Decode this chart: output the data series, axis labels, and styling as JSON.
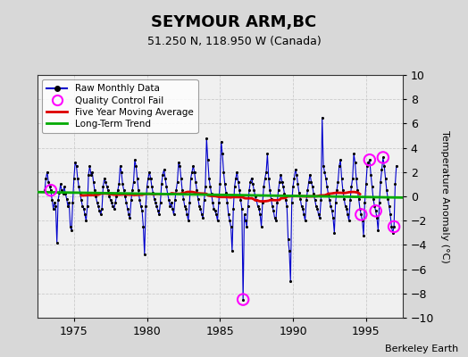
{
  "title": "SEYMOUR ARM,BC",
  "subtitle": "51.250 N, 118.950 W (Canada)",
  "ylabel": "Temperature Anomaly (°C)",
  "attribution": "Berkeley Earth",
  "ylim": [
    -10,
    10
  ],
  "xlim": [
    1972.5,
    1997.5
  ],
  "yticks": [
    -10,
    -8,
    -6,
    -4,
    -2,
    0,
    2,
    4,
    6,
    8,
    10
  ],
  "xticks": [
    1975,
    1980,
    1985,
    1990,
    1995
  ],
  "fig_bg_color": "#d8d8d8",
  "plot_bg_color": "#f0f0f0",
  "legend_bg": "#ffffff",
  "raw_color": "#0000cc",
  "ma_color": "#dd0000",
  "trend_color": "#00aa00",
  "qc_color": "#ff00ff",
  "raw_data": [
    [
      1973.0,
      0.5
    ],
    [
      1973.083,
      1.5
    ],
    [
      1973.167,
      2.0
    ],
    [
      1973.25,
      1.2
    ],
    [
      1973.333,
      0.8
    ],
    [
      1973.417,
      0.5
    ],
    [
      1973.5,
      -0.3
    ],
    [
      1973.583,
      -1.0
    ],
    [
      1973.667,
      -0.5
    ],
    [
      1973.75,
      -0.8
    ],
    [
      1973.833,
      -3.8
    ],
    [
      1973.917,
      -0.3
    ],
    [
      1974.0,
      0.3
    ],
    [
      1974.083,
      1.0
    ],
    [
      1974.167,
      0.5
    ],
    [
      1974.25,
      0.2
    ],
    [
      1974.333,
      0.8
    ],
    [
      1974.417,
      0.2
    ],
    [
      1974.5,
      -0.2
    ],
    [
      1974.583,
      -0.8
    ],
    [
      1974.667,
      -0.5
    ],
    [
      1974.75,
      -2.5
    ],
    [
      1974.833,
      -2.8
    ],
    [
      1974.917,
      -0.5
    ],
    [
      1975.0,
      1.5
    ],
    [
      1975.083,
      2.8
    ],
    [
      1975.167,
      2.5
    ],
    [
      1975.25,
      1.5
    ],
    [
      1975.333,
      0.8
    ],
    [
      1975.417,
      0.3
    ],
    [
      1975.5,
      -0.3
    ],
    [
      1975.583,
      -0.8
    ],
    [
      1975.667,
      -1.0
    ],
    [
      1975.75,
      -1.5
    ],
    [
      1975.833,
      -2.0
    ],
    [
      1975.917,
      -0.8
    ],
    [
      1976.0,
      1.8
    ],
    [
      1976.083,
      2.5
    ],
    [
      1976.167,
      1.8
    ],
    [
      1976.25,
      2.0
    ],
    [
      1976.333,
      1.2
    ],
    [
      1976.417,
      0.5
    ],
    [
      1976.5,
      0.0
    ],
    [
      1976.583,
      -0.5
    ],
    [
      1976.667,
      -0.8
    ],
    [
      1976.75,
      -1.2
    ],
    [
      1976.833,
      -1.5
    ],
    [
      1976.917,
      -1.0
    ],
    [
      1977.0,
      0.8
    ],
    [
      1977.083,
      1.5
    ],
    [
      1977.167,
      1.2
    ],
    [
      1977.25,
      0.8
    ],
    [
      1977.333,
      0.5
    ],
    [
      1977.417,
      0.0
    ],
    [
      1977.5,
      -0.3
    ],
    [
      1977.583,
      -0.5
    ],
    [
      1977.667,
      -0.8
    ],
    [
      1977.75,
      -1.0
    ],
    [
      1977.833,
      -0.5
    ],
    [
      1977.917,
      0.0
    ],
    [
      1978.0,
      0.5
    ],
    [
      1978.083,
      1.0
    ],
    [
      1978.167,
      2.5
    ],
    [
      1978.25,
      2.0
    ],
    [
      1978.333,
      1.0
    ],
    [
      1978.417,
      0.5
    ],
    [
      1978.5,
      0.0
    ],
    [
      1978.583,
      -0.5
    ],
    [
      1978.667,
      -1.0
    ],
    [
      1978.75,
      -1.5
    ],
    [
      1978.833,
      -1.8
    ],
    [
      1978.917,
      -0.3
    ],
    [
      1979.0,
      0.5
    ],
    [
      1979.083,
      1.2
    ],
    [
      1979.167,
      3.0
    ],
    [
      1979.25,
      2.5
    ],
    [
      1979.333,
      1.5
    ],
    [
      1979.417,
      0.5
    ],
    [
      1979.5,
      -0.3
    ],
    [
      1979.583,
      -0.8
    ],
    [
      1979.667,
      -1.2
    ],
    [
      1979.75,
      -2.5
    ],
    [
      1979.833,
      -4.8
    ],
    [
      1979.917,
      -0.8
    ],
    [
      1980.0,
      0.8
    ],
    [
      1980.083,
      1.5
    ],
    [
      1980.167,
      2.0
    ],
    [
      1980.25,
      1.5
    ],
    [
      1980.333,
      0.8
    ],
    [
      1980.417,
      0.3
    ],
    [
      1980.5,
      -0.2
    ],
    [
      1980.583,
      -0.5
    ],
    [
      1980.667,
      -0.8
    ],
    [
      1980.75,
      -1.2
    ],
    [
      1980.833,
      -1.5
    ],
    [
      1980.917,
      -0.5
    ],
    [
      1981.0,
      1.0
    ],
    [
      1981.083,
      1.8
    ],
    [
      1981.167,
      2.2
    ],
    [
      1981.25,
      1.5
    ],
    [
      1981.333,
      0.8
    ],
    [
      1981.417,
      0.2
    ],
    [
      1981.5,
      -0.3
    ],
    [
      1981.583,
      -0.8
    ],
    [
      1981.667,
      -0.5
    ],
    [
      1981.75,
      -1.0
    ],
    [
      1981.833,
      -1.5
    ],
    [
      1981.917,
      -0.3
    ],
    [
      1982.0,
      0.5
    ],
    [
      1982.083,
      1.2
    ],
    [
      1982.167,
      2.8
    ],
    [
      1982.25,
      2.5
    ],
    [
      1982.333,
      1.5
    ],
    [
      1982.417,
      0.5
    ],
    [
      1982.5,
      -0.2
    ],
    [
      1982.583,
      -0.8
    ],
    [
      1982.667,
      -1.0
    ],
    [
      1982.75,
      -1.5
    ],
    [
      1982.833,
      -2.0
    ],
    [
      1982.917,
      -0.5
    ],
    [
      1983.0,
      1.5
    ],
    [
      1983.083,
      2.0
    ],
    [
      1983.167,
      2.5
    ],
    [
      1983.25,
      2.0
    ],
    [
      1983.333,
      1.2
    ],
    [
      1983.417,
      0.5
    ],
    [
      1983.5,
      -0.2
    ],
    [
      1983.583,
      -0.8
    ],
    [
      1983.667,
      -1.0
    ],
    [
      1983.75,
      -1.5
    ],
    [
      1983.833,
      -1.8
    ],
    [
      1983.917,
      -0.3
    ],
    [
      1984.0,
      0.8
    ],
    [
      1984.083,
      4.8
    ],
    [
      1984.167,
      3.0
    ],
    [
      1984.25,
      1.5
    ],
    [
      1984.333,
      0.8
    ],
    [
      1984.417,
      0.2
    ],
    [
      1984.5,
      -0.5
    ],
    [
      1984.583,
      -1.0
    ],
    [
      1984.667,
      -1.2
    ],
    [
      1984.75,
      -1.5
    ],
    [
      1984.833,
      -2.0
    ],
    [
      1984.917,
      -0.5
    ],
    [
      1985.0,
      1.0
    ],
    [
      1985.083,
      4.5
    ],
    [
      1985.167,
      3.5
    ],
    [
      1985.25,
      2.0
    ],
    [
      1985.333,
      1.0
    ],
    [
      1985.417,
      0.3
    ],
    [
      1985.5,
      -0.5
    ],
    [
      1985.583,
      -1.5
    ],
    [
      1985.667,
      -2.0
    ],
    [
      1985.75,
      -2.5
    ],
    [
      1985.833,
      -4.5
    ],
    [
      1985.917,
      -1.0
    ],
    [
      1986.0,
      0.8
    ],
    [
      1986.083,
      1.5
    ],
    [
      1986.167,
      2.0
    ],
    [
      1986.25,
      1.2
    ],
    [
      1986.333,
      0.5
    ],
    [
      1986.417,
      -0.3
    ],
    [
      1986.5,
      -1.0
    ],
    [
      1986.583,
      -8.5
    ],
    [
      1986.667,
      -1.5
    ],
    [
      1986.75,
      -2.0
    ],
    [
      1986.833,
      -2.5
    ],
    [
      1986.917,
      -0.8
    ],
    [
      1987.0,
      0.5
    ],
    [
      1987.083,
      1.2
    ],
    [
      1987.167,
      1.5
    ],
    [
      1987.25,
      1.0
    ],
    [
      1987.333,
      0.5
    ],
    [
      1987.417,
      0.0
    ],
    [
      1987.5,
      -0.3
    ],
    [
      1987.583,
      -0.8
    ],
    [
      1987.667,
      -1.0
    ],
    [
      1987.75,
      -1.5
    ],
    [
      1987.833,
      -2.5
    ],
    [
      1987.917,
      -0.5
    ],
    [
      1988.0,
      0.8
    ],
    [
      1988.083,
      1.5
    ],
    [
      1988.167,
      2.0
    ],
    [
      1988.25,
      3.5
    ],
    [
      1988.333,
      1.5
    ],
    [
      1988.417,
      0.5
    ],
    [
      1988.5,
      -0.2
    ],
    [
      1988.583,
      -0.8
    ],
    [
      1988.667,
      -1.2
    ],
    [
      1988.75,
      -1.8
    ],
    [
      1988.833,
      -2.0
    ],
    [
      1988.917,
      -0.5
    ],
    [
      1989.0,
      0.5
    ],
    [
      1989.083,
      1.2
    ],
    [
      1989.167,
      1.8
    ],
    [
      1989.25,
      1.2
    ],
    [
      1989.333,
      0.8
    ],
    [
      1989.417,
      0.2
    ],
    [
      1989.5,
      -0.3
    ],
    [
      1989.583,
      -0.8
    ],
    [
      1989.667,
      -3.5
    ],
    [
      1989.75,
      -4.5
    ],
    [
      1989.833,
      -7.0
    ],
    [
      1989.917,
      -0.5
    ],
    [
      1990.0,
      0.8
    ],
    [
      1990.083,
      1.5
    ],
    [
      1990.167,
      2.2
    ],
    [
      1990.25,
      1.8
    ],
    [
      1990.333,
      1.0
    ],
    [
      1990.417,
      0.3
    ],
    [
      1990.5,
      -0.2
    ],
    [
      1990.583,
      -0.8
    ],
    [
      1990.667,
      -1.0
    ],
    [
      1990.75,
      -1.5
    ],
    [
      1990.833,
      -2.0
    ],
    [
      1990.917,
      -0.3
    ],
    [
      1991.0,
      0.5
    ],
    [
      1991.083,
      1.2
    ],
    [
      1991.167,
      1.8
    ],
    [
      1991.25,
      1.2
    ],
    [
      1991.333,
      0.8
    ],
    [
      1991.417,
      0.2
    ],
    [
      1991.5,
      -0.3
    ],
    [
      1991.583,
      -0.8
    ],
    [
      1991.667,
      -1.0
    ],
    [
      1991.75,
      -1.5
    ],
    [
      1991.833,
      -1.8
    ],
    [
      1991.917,
      -0.3
    ],
    [
      1992.0,
      6.5
    ],
    [
      1992.083,
      2.5
    ],
    [
      1992.167,
      2.0
    ],
    [
      1992.25,
      1.5
    ],
    [
      1992.333,
      0.8
    ],
    [
      1992.417,
      0.2
    ],
    [
      1992.5,
      -0.3
    ],
    [
      1992.583,
      -0.8
    ],
    [
      1992.667,
      -1.2
    ],
    [
      1992.75,
      -1.8
    ],
    [
      1992.833,
      -3.0
    ],
    [
      1992.917,
      -0.5
    ],
    [
      1993.0,
      0.5
    ],
    [
      1993.083,
      1.2
    ],
    [
      1993.167,
      2.5
    ],
    [
      1993.25,
      3.0
    ],
    [
      1993.333,
      1.5
    ],
    [
      1993.417,
      0.5
    ],
    [
      1993.5,
      -0.2
    ],
    [
      1993.583,
      -0.8
    ],
    [
      1993.667,
      -1.0
    ],
    [
      1993.75,
      -1.5
    ],
    [
      1993.833,
      -2.0
    ],
    [
      1993.917,
      -0.3
    ],
    [
      1994.0,
      0.8
    ],
    [
      1994.083,
      1.5
    ],
    [
      1994.167,
      3.5
    ],
    [
      1994.25,
      2.8
    ],
    [
      1994.333,
      1.5
    ],
    [
      1994.417,
      0.5
    ],
    [
      1994.5,
      -0.2
    ],
    [
      1994.583,
      -1.0
    ],
    [
      1994.667,
      -1.5
    ],
    [
      1994.75,
      -2.0
    ],
    [
      1994.833,
      -3.2
    ],
    [
      1994.917,
      -0.5
    ],
    [
      1995.0,
      1.0
    ],
    [
      1995.083,
      2.5
    ],
    [
      1995.167,
      2.8
    ],
    [
      1995.25,
      3.0
    ],
    [
      1995.333,
      1.8
    ],
    [
      1995.417,
      0.8
    ],
    [
      1995.5,
      -0.2
    ],
    [
      1995.583,
      -0.8
    ],
    [
      1995.667,
      -1.2
    ],
    [
      1995.75,
      -1.8
    ],
    [
      1995.833,
      -2.8
    ],
    [
      1995.917,
      -0.5
    ],
    [
      1996.0,
      1.2
    ],
    [
      1996.083,
      2.2
    ],
    [
      1996.167,
      3.2
    ],
    [
      1996.25,
      2.5
    ],
    [
      1996.333,
      1.5
    ],
    [
      1996.417,
      0.5
    ],
    [
      1996.5,
      -0.2
    ],
    [
      1996.583,
      -0.8
    ],
    [
      1996.667,
      -1.5
    ],
    [
      1996.75,
      -2.5
    ],
    [
      1996.833,
      -3.0
    ],
    [
      1996.917,
      -2.5
    ],
    [
      1997.0,
      1.0
    ],
    [
      1997.083,
      2.5
    ]
  ],
  "qc_fail_points": [
    [
      1973.417,
      0.5
    ],
    [
      1986.583,
      -8.5
    ],
    [
      1994.667,
      -1.5
    ],
    [
      1995.25,
      3.0
    ],
    [
      1995.667,
      -1.2
    ],
    [
      1996.167,
      3.2
    ],
    [
      1996.917,
      -2.5
    ]
  ],
  "trend_x": [
    1972.5,
    1997.5
  ],
  "trend_y": [
    0.35,
    -0.1
  ],
  "title_fontsize": 13,
  "subtitle_fontsize": 9,
  "tick_fontsize": 9,
  "ylabel_fontsize": 8,
  "attribution_fontsize": 8,
  "legend_fontsize": 7.5
}
